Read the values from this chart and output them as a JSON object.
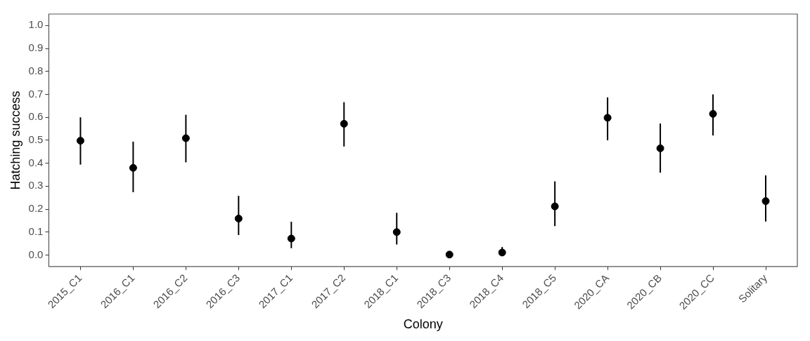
{
  "chart_data": {
    "type": "scatter",
    "xlabel": "Colony",
    "ylabel": "Hatching success",
    "categories": [
      "2015_C1",
      "2016_C1",
      "2016_C2",
      "2016_C3",
      "2017_C1",
      "2017_C2",
      "2018_C1",
      "2018_C3",
      "2018_C4",
      "2018_C5",
      "2020_CA",
      "2020_CB",
      "2020_CC",
      "Solitary"
    ],
    "values": [
      0.498,
      0.38,
      0.509,
      0.159,
      0.072,
      0.572,
      0.1,
      0.002,
      0.011,
      0.212,
      0.598,
      0.465,
      0.615,
      0.235
    ],
    "errors": [
      [
        0.394,
        0.6
      ],
      [
        0.274,
        0.494
      ],
      [
        0.404,
        0.611
      ],
      [
        0.087,
        0.258
      ],
      [
        0.03,
        0.145
      ],
      [
        0.473,
        0.666
      ],
      [
        0.046,
        0.184
      ],
      null,
      [
        0.003,
        0.035
      ],
      [
        0.126,
        0.321
      ],
      [
        0.5,
        0.687
      ],
      [
        0.359,
        0.573
      ],
      [
        0.521,
        0.7
      ],
      [
        0.146,
        0.347
      ]
    ],
    "color": "#000000",
    "marker": "circle",
    "legend": false,
    "ylim": [
      -0.05,
      1.05
    ],
    "yticks": [
      {
        "value": 0,
        "label": "0.0"
      },
      {
        "value": 0.1,
        "label": "0.1"
      },
      {
        "value": 0.2,
        "label": "0.2"
      },
      {
        "value": 0.3,
        "label": "0.3"
      },
      {
        "value": 0.4,
        "label": "0.4"
      },
      {
        "value": 0.5,
        "label": "0.5"
      },
      {
        "value": 0.6,
        "label": "0.6"
      },
      {
        "value": 0.7,
        "label": "0.7"
      },
      {
        "value": 0.8,
        "label": "0.8"
      },
      {
        "value": 0.9,
        "label": "0.9"
      },
      {
        "value": 1,
        "label": "1.0"
      }
    ]
  }
}
